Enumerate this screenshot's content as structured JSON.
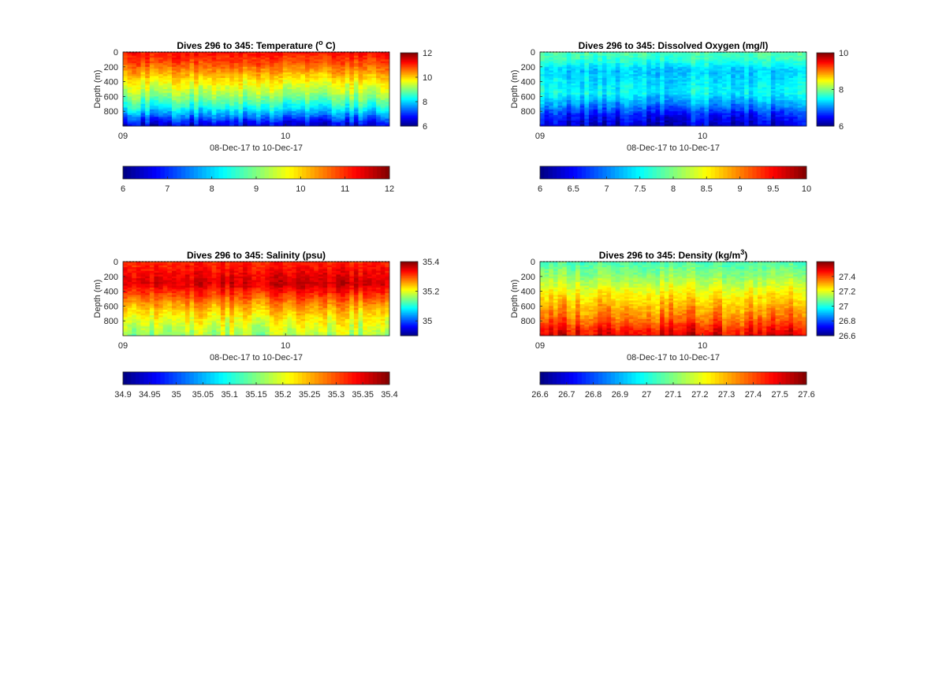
{
  "figure": {
    "background": "#ffffff",
    "colormap": "jet"
  },
  "chart_data": [
    {
      "type": "heatmap",
      "title_main": "Dives 296 to 345: Temperature (",
      "title_sup": "o",
      "title_post": " C)",
      "xlabel": "08-Dec-17 to 10-Dec-17",
      "ylabel": "Depth (m)",
      "x_ticks": [
        "09",
        "10"
      ],
      "y_ticks": [
        0,
        200,
        400,
        600,
        800
      ],
      "ylim": [
        0,
        1000
      ],
      "y_reversed": true,
      "clim": [
        6,
        12
      ],
      "side_colorbar_ticks": [
        6,
        8,
        10,
        12
      ],
      "bottom_colorbar_ticks": [
        "6",
        "7",
        "8",
        "9",
        "10",
        "11",
        "12"
      ],
      "depth_profile": [
        {
          "depth": 0,
          "value": 11.2
        },
        {
          "depth": 150,
          "value": 10.8
        },
        {
          "depth": 300,
          "value": 10.2
        },
        {
          "depth": 450,
          "value": 9.6
        },
        {
          "depth": 550,
          "value": 9.3
        },
        {
          "depth": 650,
          "value": 8.8
        },
        {
          "depth": 750,
          "value": 8.3
        },
        {
          "depth": 850,
          "value": 7.6
        },
        {
          "depth": 950,
          "value": 6.8
        },
        {
          "depth": 1000,
          "value": 6.5
        }
      ]
    },
    {
      "type": "heatmap",
      "title_main": "Dives 296 to 345: Dissolved Oxygen (mg/l)",
      "title_sup": "",
      "title_post": "",
      "xlabel": "08-Dec-17 to 10-Dec-17",
      "ylabel": "Depth (m)",
      "x_ticks": [
        "09",
        "10"
      ],
      "y_ticks": [
        0,
        200,
        400,
        600,
        800
      ],
      "ylim": [
        0,
        1000
      ],
      "y_reversed": true,
      "clim": [
        6,
        10
      ],
      "side_colorbar_ticks": [
        6,
        8,
        10
      ],
      "bottom_colorbar_ticks": [
        "6",
        "6.5",
        "7",
        "7.5",
        "8",
        "8.5",
        "9",
        "9.5",
        "10"
      ],
      "depth_profile": [
        {
          "depth": 0,
          "value": 7.8
        },
        {
          "depth": 100,
          "value": 7.7
        },
        {
          "depth": 250,
          "value": 7.3
        },
        {
          "depth": 400,
          "value": 7.4
        },
        {
          "depth": 550,
          "value": 7.5
        },
        {
          "depth": 700,
          "value": 7.1
        },
        {
          "depth": 850,
          "value": 6.6
        },
        {
          "depth": 1000,
          "value": 6.3
        }
      ]
    },
    {
      "type": "heatmap",
      "title_main": "Dives 296 to 345: Salinity (psu)",
      "title_sup": "",
      "title_post": "",
      "xlabel": "08-Dec-17 to 10-Dec-17",
      "ylabel": "Depth (m)",
      "x_ticks": [
        "09",
        "10"
      ],
      "y_ticks": [
        0,
        200,
        400,
        600,
        800
      ],
      "ylim": [
        0,
        1000
      ],
      "y_reversed": true,
      "clim": [
        34.9,
        35.4
      ],
      "side_colorbar_ticks": [
        35,
        35.2,
        35.4
      ],
      "bottom_colorbar_ticks": [
        "34.9",
        "34.95",
        "35",
        "35.05",
        "35.1",
        "35.15",
        "35.2",
        "35.25",
        "35.3",
        "35.35",
        "35.4"
      ],
      "depth_profile": [
        {
          "depth": 0,
          "value": 35.32
        },
        {
          "depth": 150,
          "value": 35.34
        },
        {
          "depth": 300,
          "value": 35.36
        },
        {
          "depth": 450,
          "value": 35.31
        },
        {
          "depth": 600,
          "value": 35.26
        },
        {
          "depth": 750,
          "value": 35.22
        },
        {
          "depth": 900,
          "value": 35.19
        },
        {
          "depth": 1000,
          "value": 35.17
        }
      ]
    },
    {
      "type": "heatmap",
      "title_main": "Dives 296 to 345: Density (kg/m",
      "title_sup": "3",
      "title_post": ")",
      "xlabel": "08-Dec-17 to 10-Dec-17",
      "ylabel": "Depth (m)",
      "x_ticks": [
        "09",
        "10"
      ],
      "y_ticks": [
        0,
        200,
        400,
        600,
        800
      ],
      "ylim": [
        0,
        1000
      ],
      "y_reversed": true,
      "clim": [
        26.6,
        27.6
      ],
      "side_colorbar_ticks": [
        26.6,
        26.8,
        27,
        27.2,
        27.4
      ],
      "bottom_colorbar_ticks": [
        "26.6",
        "26.7",
        "26.8",
        "26.9",
        "27",
        "27.1",
        "27.2",
        "27.3",
        "27.4",
        "27.5",
        "27.6"
      ],
      "depth_profile": [
        {
          "depth": 0,
          "value": 27.05
        },
        {
          "depth": 200,
          "value": 27.12
        },
        {
          "depth": 400,
          "value": 27.22
        },
        {
          "depth": 600,
          "value": 27.3
        },
        {
          "depth": 750,
          "value": 27.36
        },
        {
          "depth": 900,
          "value": 27.45
        },
        {
          "depth": 1000,
          "value": 27.5
        }
      ]
    }
  ]
}
